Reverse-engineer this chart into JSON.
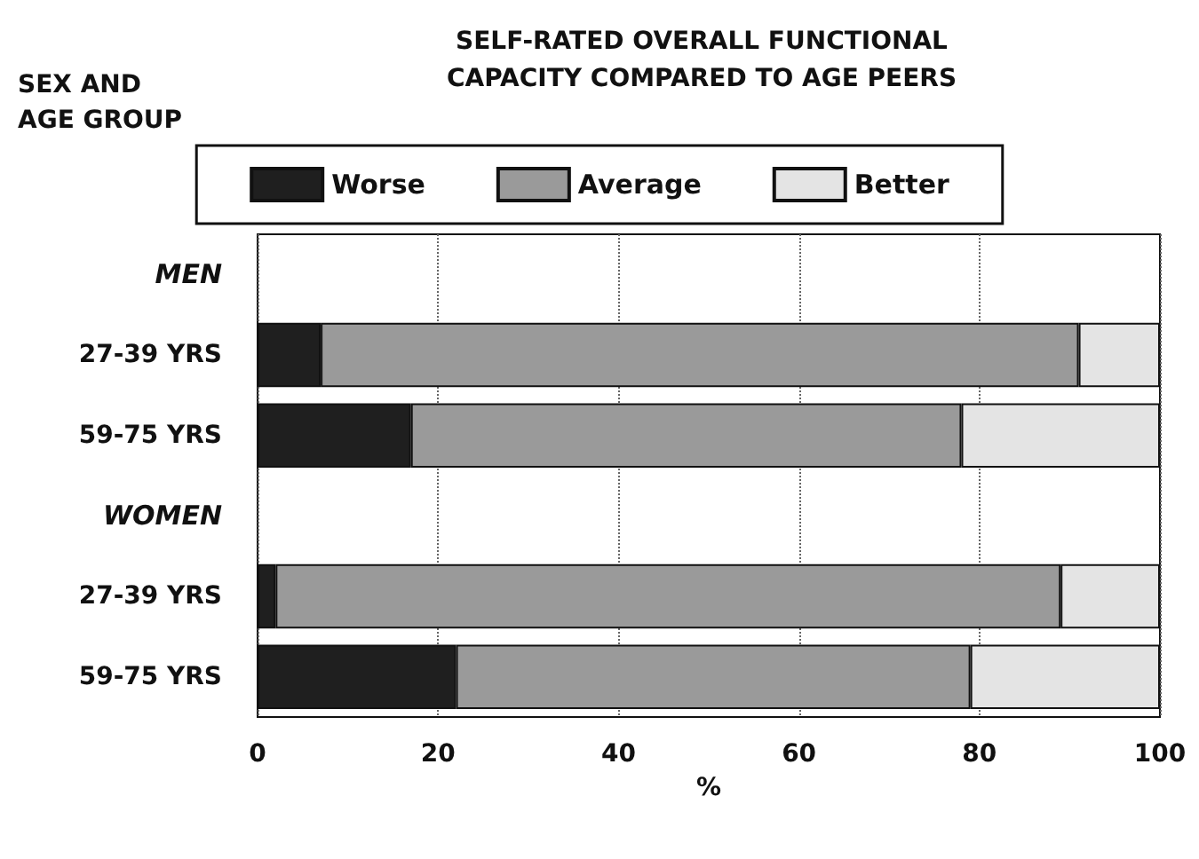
{
  "chart_data": {
    "type": "bar",
    "orientation": "horizontal",
    "stacked": true,
    "title": "SELF-RATED OVERALL FUNCTIONAL\nCAPACITY COMPARED TO AGE PEERS",
    "ylabel": "SEX AND\nAGE GROUP",
    "xlabel": "%",
    "categories": [
      "MEN",
      "27-39 YRS",
      "59-75 YRS",
      "WOMEN",
      "27-39 YRS",
      "59-75 YRS"
    ],
    "series": [
      {
        "name": "Worse",
        "color": "#1f1f1f",
        "values": [
          null,
          7,
          17,
          null,
          2,
          22
        ]
      },
      {
        "name": "Average",
        "color": "#9a9a9a",
        "values": [
          null,
          84,
          61,
          null,
          87,
          57
        ]
      },
      {
        "name": "Better",
        "color": "#e4e4e4",
        "values": [
          null,
          9,
          22,
          null,
          11,
          21
        ]
      }
    ],
    "xlim": [
      0,
      100
    ],
    "xticks": [
      0,
      20,
      40,
      60,
      80,
      100
    ],
    "grid": "x",
    "legend": "top"
  }
}
